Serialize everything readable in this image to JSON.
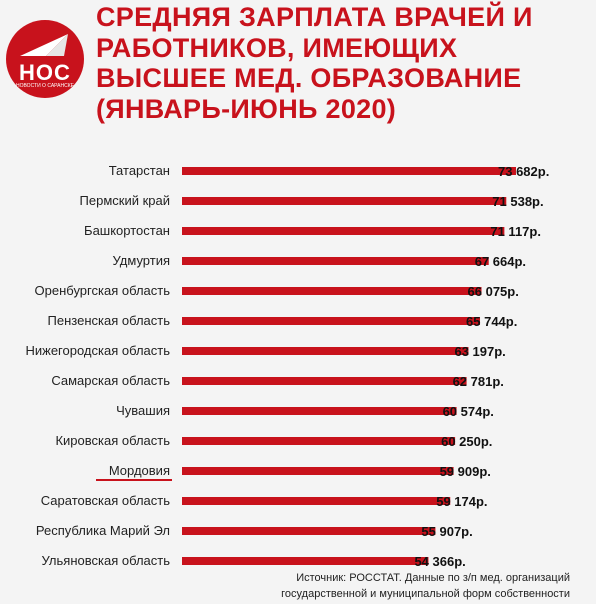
{
  "logo": {
    "text": "НОС",
    "subtitle": "НОВОСТИ О САРАНСКЕ"
  },
  "title_lines": [
    "СРЕДНЯЯ ЗАРПЛАТА ВРАЧЕЙ И",
    "РАБОТНИКОВ, ИМЕЮЩИХ",
    "ВЫСШЕЕ МЕД. ОБРАЗОВАНИЕ",
    "(ЯНВАРЬ-ИЮНЬ 2020)"
  ],
  "colors": {
    "bar": "#c8121c",
    "title": "#c8121c",
    "highlight_value": "#e03030",
    "underline": "#c8121c"
  },
  "chart_data": {
    "type": "bar",
    "orientation": "horizontal",
    "title": "СРЕДНЯЯ ЗАРПЛАТА ВРАЧЕЙ И РАБОТНИКОВ, ИМЕЮЩИХ ВЫСШЕЕ МЕД. ОБРАЗОВАНИЕ (ЯНВАРЬ-ИЮНЬ 2020)",
    "categories": [
      "Татарстан",
      "Пермский край",
      "Башкортостан",
      "Удмуртия",
      "Оренбургская область",
      "Пензенская область",
      "Нижегородская область",
      "Самарская область",
      "Чувашия",
      "Кировская область",
      "Мордовия",
      "Саратовская область",
      "Республика Марий Эл",
      "Ульяновская область"
    ],
    "values": [
      73682,
      71538,
      71117,
      67664,
      66075,
      65744,
      63197,
      62781,
      60574,
      60250,
      59909,
      59174,
      55907,
      54366
    ],
    "value_labels": [
      "73 682р.",
      "71 538р.",
      "71 117р.",
      "67 664р.",
      "66 075р.",
      "65 744р.",
      "63 197р.",
      "62 781р.",
      "60 574р.",
      "60 250р.",
      "59 909р.",
      "59 174р.",
      "55 907р.",
      "54 366р."
    ],
    "highlight": "Мордовия",
    "grid": false,
    "legend": "none"
  },
  "source_lines": [
    "Источник: РОССТАТ. Данные по з/п мед. организаций",
    "государственной и муниципальной форм собственности"
  ]
}
